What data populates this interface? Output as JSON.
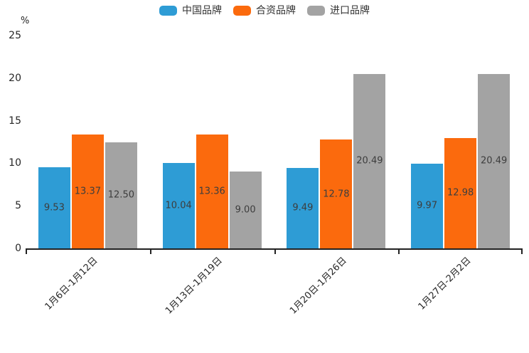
{
  "chart_data": {
    "type": "bar",
    "title": "",
    "unit_label": "%",
    "categories": [
      "1月6日-1月12日",
      "1月13日-1月19日",
      "1月20日-1月26日",
      "1月27日-2月2日"
    ],
    "series": [
      {
        "name": "中国品牌",
        "color": "#2E9CD5",
        "values": [
          9.53,
          10.04,
          9.49,
          9.97
        ]
      },
      {
        "name": "合资品牌",
        "color": "#FB6A0D",
        "values": [
          13.37,
          13.36,
          12.78,
          12.98
        ]
      },
      {
        "name": "进口品牌",
        "color": "#A3A3A3",
        "values": [
          12.5,
          9.0,
          20.49,
          20.49
        ]
      }
    ],
    "yticks": [
      0,
      5,
      10,
      15,
      20,
      25
    ],
    "ylim": [
      0,
      25
    ],
    "value_labels": "inside-center",
    "value_label_decimals": 2,
    "legend_position": "top-center",
    "grid": false,
    "axis_color": "#222222",
    "text_color": "#262626",
    "xlabel_rotation_deg": -45
  }
}
